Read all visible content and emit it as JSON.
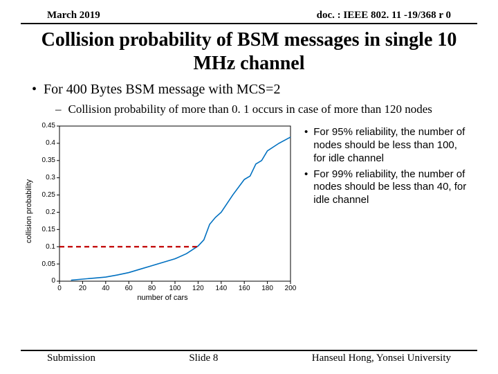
{
  "header": {
    "date": "March 2019",
    "docnum": "doc. : IEEE 802. 11 -19/368 r 0"
  },
  "title": "Collision probability of BSM messages in single 10 MHz channel",
  "bullet_main": "For 400 Bytes BSM message with MCS=2",
  "bullet_sub": "Collision probability of more than 0. 1 occurs in case of more than 120 nodes",
  "side_bullets": [
    "For 95% reliability, the number of nodes should be less than 100, for idle channel",
    "For 99% reliability, the number of nodes should be less than 40, for idle channel"
  ],
  "footer": {
    "left": "Submission",
    "center": "Slide 8",
    "right": "Hanseul Hong, Yonsei University"
  },
  "chart": {
    "type": "line",
    "xlabel": "number of cars",
    "ylabel": "collision probability",
    "xlim": [
      0,
      200
    ],
    "ylim": [
      0,
      0.45
    ],
    "xtick_step": 20,
    "ytick_step": 0.05,
    "xticks": [
      0,
      20,
      40,
      60,
      80,
      100,
      120,
      140,
      160,
      180,
      200
    ],
    "yticks": [
      0,
      0.05,
      0.1,
      0.15,
      0.2,
      0.25,
      0.3,
      0.35,
      0.4,
      0.45
    ],
    "line_color": "#0070c0",
    "line_width": 1.6,
    "ref_line_y": 0.1,
    "ref_line_x_end": 120,
    "ref_line_color": "#c00000",
    "ref_line_width": 2.2,
    "background_color": "#ffffff",
    "grid_color": "#000000",
    "plot_border_color": "#000000",
    "data": [
      [
        10,
        0.003
      ],
      [
        20,
        0.006
      ],
      [
        30,
        0.009
      ],
      [
        40,
        0.012
      ],
      [
        50,
        0.018
      ],
      [
        60,
        0.025
      ],
      [
        70,
        0.035
      ],
      [
        80,
        0.045
      ],
      [
        90,
        0.055
      ],
      [
        100,
        0.065
      ],
      [
        110,
        0.08
      ],
      [
        120,
        0.102
      ],
      [
        125,
        0.12
      ],
      [
        130,
        0.165
      ],
      [
        135,
        0.185
      ],
      [
        140,
        0.2
      ],
      [
        150,
        0.25
      ],
      [
        160,
        0.295
      ],
      [
        165,
        0.305
      ],
      [
        170,
        0.34
      ],
      [
        175,
        0.35
      ],
      [
        180,
        0.378
      ],
      [
        190,
        0.4
      ],
      [
        200,
        0.418
      ]
    ]
  }
}
